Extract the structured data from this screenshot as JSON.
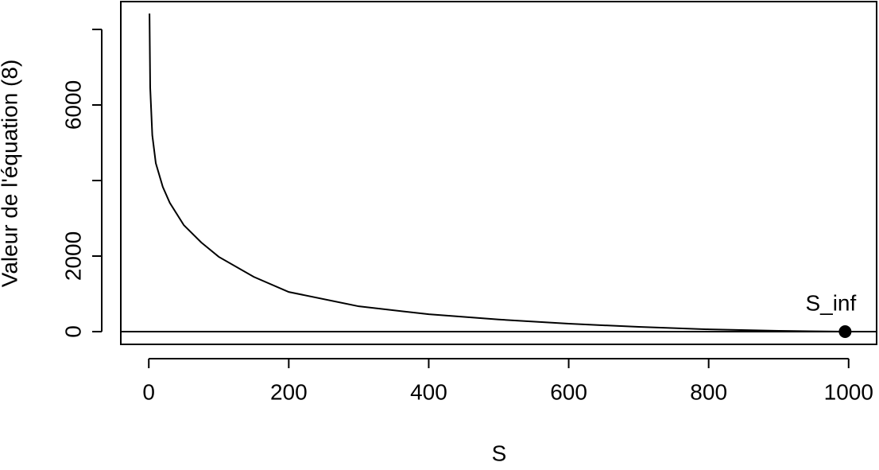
{
  "chart_data": {
    "type": "line",
    "xlabel": "S",
    "ylabel": "Valeur de l'équation (8)",
    "x": [
      1,
      2,
      5,
      10,
      20,
      30,
      50,
      75,
      100,
      150,
      200,
      300,
      400,
      500,
      600,
      700,
      800,
      900,
      995
    ],
    "series": [
      {
        "color": "#000000",
        "values": [
          8421,
          6460,
          5200,
          4460,
          3830,
          3410,
          2820,
          2360,
          1980,
          1450,
          1050,
          670,
          460,
          320,
          210,
          125,
          60,
          20,
          0
        ]
      }
    ],
    "hline": 0,
    "point": {
      "x": 995,
      "y": 0,
      "label": "S_inf"
    },
    "xlim": [
      -40,
      1040
    ],
    "xticks": [
      0,
      200,
      400,
      600,
      800,
      1000
    ],
    "ylim": [
      -337,
      8737
    ],
    "yticks": [
      0,
      2000,
      {
        "value": 4000,
        "label": null
      },
      6000,
      {
        "value": 8000,
        "label": null
      }
    ]
  }
}
